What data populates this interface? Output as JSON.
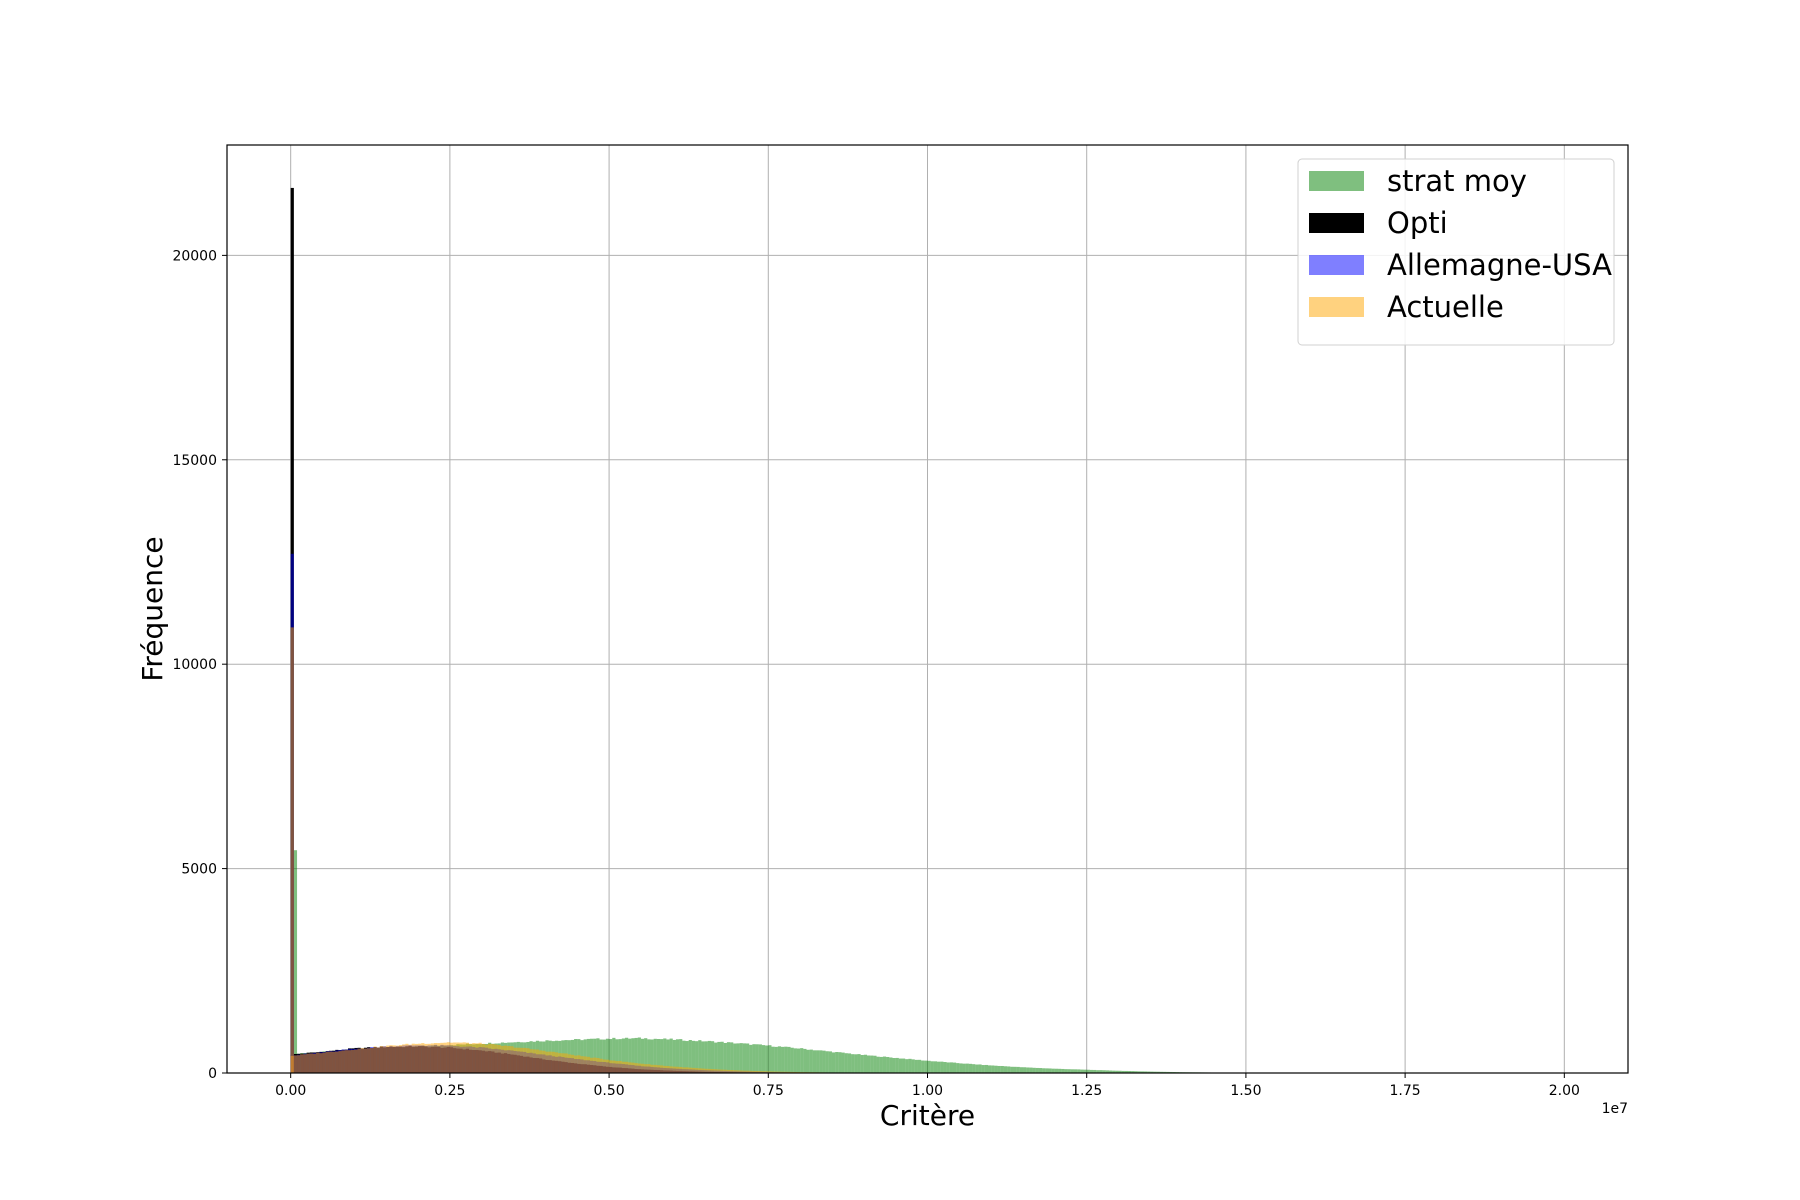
{
  "chart_data": {
    "type": "histogram",
    "title": "",
    "xlabel": "Critère",
    "ylabel": "Fréquence",
    "x_offset_label": "1e7",
    "xlim": [
      -1000000,
      21000000
    ],
    "ylim": [
      0,
      22700
    ],
    "x_ticks": [
      0,
      2500000,
      5000000,
      7500000,
      10000000,
      12500000,
      15000000,
      17500000,
      20000000
    ],
    "x_tick_labels": [
      "0.00",
      "0.25",
      "0.50",
      "0.75",
      "1.00",
      "1.25",
      "1.50",
      "1.75",
      "2.00"
    ],
    "y_ticks": [
      0,
      5000,
      10000,
      15000,
      20000
    ],
    "y_tick_labels": [
      "0",
      "5000",
      "10000",
      "15000",
      "20000"
    ],
    "grid": true,
    "legend_position": "top-right",
    "bin_width": 50000,
    "series": [
      {
        "name": "strat moy",
        "color": "#008000",
        "alpha": 0.5,
        "spike": {
          "x": 50000,
          "value": 5450
        },
        "curve": [
          [
            100000,
            480
          ],
          [
            1000000,
            560
          ],
          [
            2000000,
            650
          ],
          [
            3000000,
            720
          ],
          [
            4000000,
            790
          ],
          [
            5000000,
            840
          ],
          [
            5500000,
            850
          ],
          [
            6000000,
            820
          ],
          [
            6500000,
            780
          ],
          [
            7000000,
            730
          ],
          [
            7500000,
            670
          ],
          [
            8000000,
            600
          ],
          [
            8500000,
            520
          ],
          [
            9000000,
            440
          ],
          [
            9500000,
            370
          ],
          [
            10000000,
            300
          ],
          [
            10500000,
            240
          ],
          [
            11000000,
            185
          ],
          [
            11500000,
            140
          ],
          [
            12000000,
            105
          ],
          [
            12500000,
            80
          ],
          [
            13000000,
            55
          ],
          [
            13500000,
            35
          ],
          [
            14000000,
            20
          ],
          [
            14500000,
            12
          ],
          [
            15000000,
            8
          ],
          [
            15500000,
            4
          ],
          [
            16000000,
            2
          ],
          [
            17000000,
            1
          ],
          [
            18000000,
            0
          ]
        ]
      },
      {
        "name": "Opti",
        "color": "#000000",
        "alpha": 1.0,
        "spike": {
          "x": 0,
          "value": 21650
        },
        "curve": [
          [
            0,
            450
          ],
          [
            500000,
            520
          ],
          [
            1000000,
            600
          ],
          [
            1500000,
            640
          ],
          [
            2000000,
            650
          ],
          [
            2500000,
            620
          ],
          [
            3000000,
            550
          ],
          [
            3500000,
            450
          ],
          [
            4000000,
            330
          ],
          [
            4500000,
            230
          ],
          [
            5000000,
            150
          ],
          [
            5500000,
            90
          ],
          [
            6000000,
            55
          ],
          [
            6500000,
            30
          ],
          [
            7000000,
            15
          ],
          [
            7500000,
            7
          ],
          [
            8000000,
            3
          ],
          [
            8500000,
            1
          ],
          [
            9000000,
            0
          ]
        ]
      },
      {
        "name": "Allemagne-USA",
        "color": "#0000ff",
        "alpha": 0.5,
        "spike": {
          "x": 0,
          "value": 12700
        },
        "curve": [
          [
            0,
            430
          ],
          [
            500000,
            510
          ],
          [
            1000000,
            590
          ],
          [
            1500000,
            650
          ],
          [
            2000000,
            680
          ],
          [
            2500000,
            670
          ],
          [
            3000000,
            620
          ],
          [
            3500000,
            540
          ],
          [
            4000000,
            440
          ],
          [
            4500000,
            340
          ],
          [
            5000000,
            250
          ],
          [
            5500000,
            170
          ],
          [
            6000000,
            110
          ],
          [
            6500000,
            70
          ],
          [
            7000000,
            40
          ],
          [
            7500000,
            22
          ],
          [
            8000000,
            12
          ],
          [
            8500000,
            5
          ],
          [
            9000000,
            2
          ],
          [
            10000000,
            0
          ]
        ]
      },
      {
        "name": "Actuelle",
        "color": "#ffa500",
        "alpha": 0.5,
        "spike": {
          "x": 0,
          "value": 10900
        },
        "curve": [
          [
            0,
            420
          ],
          [
            500000,
            500
          ],
          [
            1000000,
            580
          ],
          [
            1500000,
            660
          ],
          [
            2000000,
            720
          ],
          [
            2500000,
            750
          ],
          [
            3000000,
            720
          ],
          [
            3500000,
            640
          ],
          [
            4000000,
            540
          ],
          [
            4500000,
            430
          ],
          [
            5000000,
            320
          ],
          [
            5500000,
            230
          ],
          [
            6000000,
            160
          ],
          [
            6500000,
            105
          ],
          [
            7000000,
            65
          ],
          [
            7500000,
            38
          ],
          [
            8000000,
            22
          ],
          [
            8500000,
            11
          ],
          [
            9000000,
            5
          ],
          [
            10000000,
            0
          ]
        ]
      }
    ]
  }
}
